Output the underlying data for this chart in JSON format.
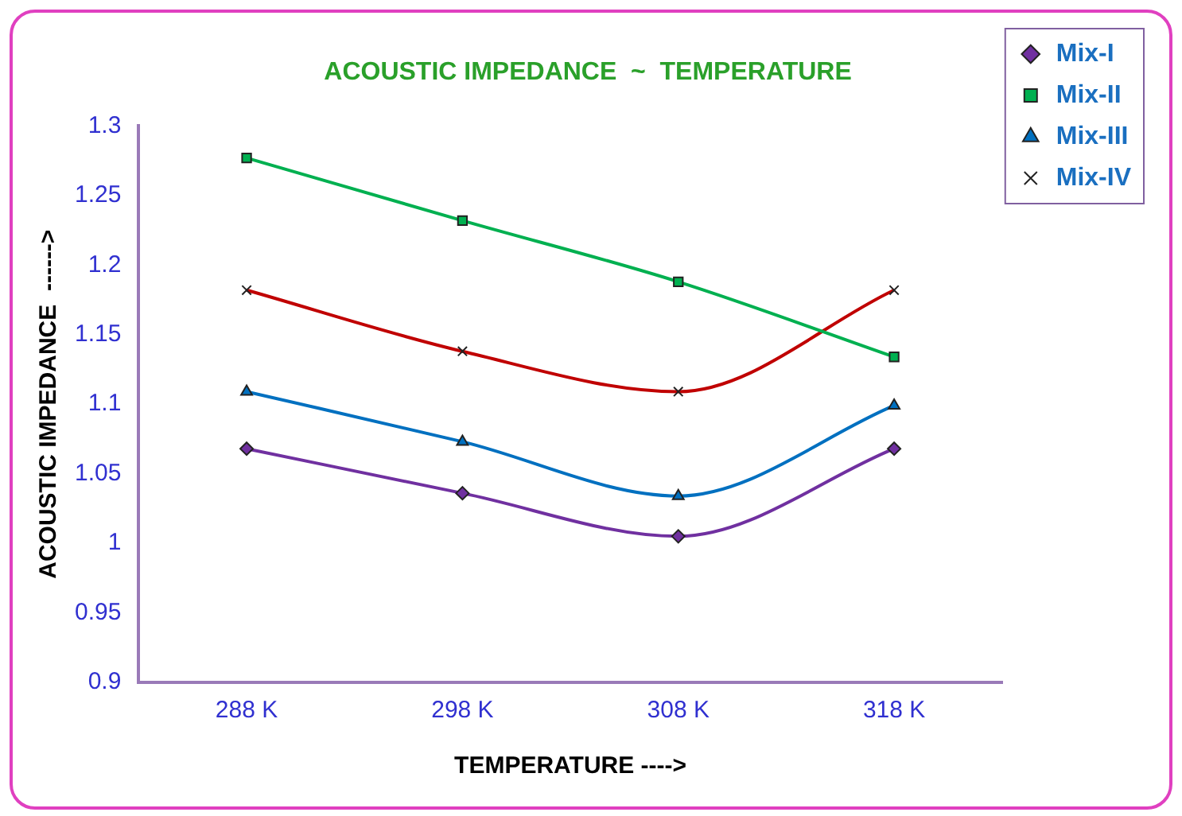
{
  "chart_data": {
    "type": "line",
    "title": "ACOUSTIC IMPEDANCE  ~  TEMPERATURE",
    "xlabel": "TEMPERATURE ---->",
    "ylabel": "ACOUSTIC IMPEDANCE  ------>",
    "categories": [
      "288 K",
      "298 K",
      "308 K",
      "318 K"
    ],
    "series": [
      {
        "name": "Mix-I",
        "color": "#7030a0",
        "marker": "diamond",
        "values": [
          1.068,
          1.036,
          1.005,
          1.068
        ]
      },
      {
        "name": "Mix-II",
        "color": "#00b050",
        "marker": "square",
        "values": [
          1.277,
          1.232,
          1.188,
          1.134
        ]
      },
      {
        "name": "Mix-III",
        "color": "#0070c0",
        "marker": "triangle",
        "values": [
          1.109,
          1.073,
          1.034,
          1.099
        ]
      },
      {
        "name": "Mix-IV",
        "color": "#c00000",
        "marker": "cross",
        "values": [
          1.182,
          1.138,
          1.109,
          1.182
        ]
      }
    ],
    "ylim": [
      0.9,
      1.3
    ],
    "yticks": [
      0.9,
      0.95,
      1,
      1.05,
      1.1,
      1.15,
      1.2,
      1.25,
      1.3
    ],
    "grid": false,
    "legend": "top right"
  }
}
